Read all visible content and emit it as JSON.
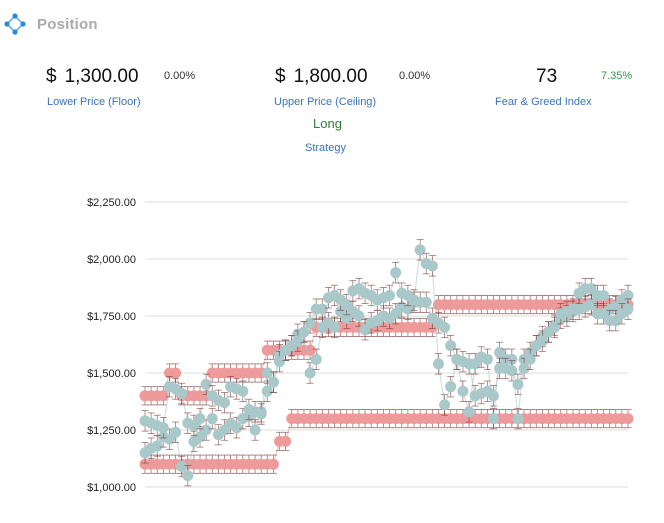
{
  "panel": {
    "title": "Position",
    "icon": "diamond-nodes-icon"
  },
  "stats": {
    "lower": {
      "currency": "$",
      "value": "1,300.00",
      "change": "0.00%",
      "label": "Lower Price (Floor)"
    },
    "upper": {
      "currency": "$",
      "value": "1,800.00",
      "change": "0.00%",
      "label": "Upper Price (Ceiling)"
    },
    "greed": {
      "value": "73",
      "change": "7.35%",
      "label": "Fear & Greed Index"
    },
    "strategy": {
      "value": "Long",
      "label": "Strategy"
    }
  },
  "colors": {
    "accent": "#3b73b9",
    "positive": "#2e9a4a",
    "red_series": "#ee9a9a",
    "teal_series": "#a8c8ca",
    "error_bar": "#7a3b3b"
  },
  "chart_data": {
    "type": "scatter",
    "y_ticks": [
      "$2,250.00",
      "$2,000.00",
      "$1,750.00",
      "$1,500.00",
      "$1,250.00",
      "$1,000.00"
    ],
    "ylim": [
      1000,
      2250
    ],
    "grid": true,
    "x_count": 80,
    "series": [
      {
        "color": "#ee9a9a",
        "error": 40,
        "values": [
          1400,
          1400,
          1400,
          1400,
          1500,
          1500,
          1400,
          1400,
          1400,
          1400,
          1400,
          1500,
          1500,
          1500,
          1500,
          1500,
          1500,
          1500,
          1500,
          1500,
          1600,
          1600,
          1600,
          1600,
          1600,
          1600,
          1600,
          1600,
          1700,
          1700,
          1700,
          1700,
          1700,
          1700,
          1700,
          1700,
          1700,
          1700,
          1700,
          1700,
          1700,
          1700,
          1700,
          1700,
          1700,
          1700,
          1700,
          1700,
          1800,
          1800,
          1800,
          1800,
          1800,
          1800,
          1800,
          1800,
          1800,
          1800,
          1800,
          1800,
          1800,
          1800,
          1800,
          1800,
          1800,
          1800,
          1800,
          1800,
          1800,
          1800,
          1800,
          1800,
          1800,
          1800,
          1800,
          1800,
          1800,
          1800,
          1800,
          1800
        ]
      },
      {
        "color": "#ee9a9a",
        "error": 40,
        "values": [
          1100,
          1100,
          1100,
          1100,
          1100,
          1100,
          1100,
          1100,
          1100,
          1100,
          1100,
          1100,
          1100,
          1100,
          1100,
          1100,
          1100,
          1100,
          1100,
          1100,
          1100,
          1100,
          1200,
          1200,
          1300,
          1300,
          1300,
          1300,
          1300,
          1300,
          1300,
          1300,
          1300,
          1300,
          1300,
          1300,
          1300,
          1300,
          1300,
          1300,
          1300,
          1300,
          1300,
          1300,
          1300,
          1300,
          1300,
          1300,
          1300,
          1300,
          1300,
          1300,
          1300,
          1300,
          1300,
          1300,
          1300,
          1300,
          1300,
          1300,
          1300,
          1300,
          1300,
          1300,
          1300,
          1300,
          1300,
          1300,
          1300,
          1300,
          1300,
          1300,
          1300,
          1300,
          1300,
          1300,
          1300,
          1300,
          1300,
          1300
        ]
      },
      {
        "color": "#a8c8ca",
        "error": 45,
        "values": [
          1290,
          1280,
          1270,
          1260,
          1440,
          1430,
          1410,
          1280,
          1270,
          1300,
          1450,
          1400,
          1380,
          1370,
          1440,
          1430,
          1420,
          1340,
          1330,
          1320,
          1500,
          1460,
          1550,
          1600,
          1620,
          1640,
          1680,
          1500,
          1560,
          1700,
          1830,
          1840,
          1820,
          1800,
          1860,
          1870,
          1850,
          1840,
          1820,
          1830,
          1840,
          1940,
          1850,
          1840,
          1820,
          2040,
          1980,
          1970,
          1540,
          1360,
          1440,
          1560,
          1550,
          1540,
          1400,
          1410,
          1420,
          1400,
          1520,
          1520,
          1510,
          1450,
          1520,
          1560,
          1620,
          1640,
          1680,
          1700,
          1760,
          1770,
          1780,
          1850,
          1870,
          1870,
          1840,
          1840,
          1730,
          1730,
          1760,
          1780
        ],
        "values_b": [
          1150,
          1170,
          1180,
          1220,
          1210,
          1240,
          1090,
          1050,
          1200,
          1220,
          1250,
          1300,
          1230,
          1250,
          1280,
          1260,
          1300,
          1310,
          1250,
          1330,
          1420,
          1460,
          1580,
          1600,
          1620,
          1670,
          1680,
          1720,
          1780,
          1780,
          1720,
          1700,
          1770,
          1740,
          1770,
          1750,
          1690,
          1720,
          1730,
          1750,
          1740,
          1760,
          1790,
          1780,
          1810,
          1810,
          1810,
          1740,
          1720,
          1700,
          1620,
          1560,
          1420,
          1330,
          1540,
          1570,
          1560,
          1300,
          1590,
          1560,
          1560,
          1300,
          1560,
          1590,
          1620,
          1660,
          1680,
          1710,
          1740,
          1750,
          1770,
          1780,
          1790,
          1800,
          1760,
          1760,
          1780,
          1790,
          1820,
          1840
        ]
      }
    ]
  }
}
